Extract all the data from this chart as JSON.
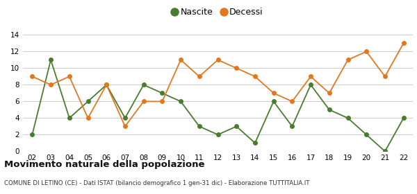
{
  "years": [
    "02",
    "03",
    "04",
    "05",
    "06",
    "07",
    "08",
    "09",
    "10",
    "11",
    "12",
    "13",
    "14",
    "15",
    "16",
    "17",
    "18",
    "19",
    "20",
    "21",
    "22"
  ],
  "nascite": [
    2,
    11,
    4,
    6,
    8,
    4,
    8,
    7,
    6,
    3,
    2,
    3,
    1,
    6,
    3,
    8,
    5,
    4,
    2,
    0,
    4
  ],
  "decessi": [
    9,
    8,
    9,
    4,
    8,
    3,
    6,
    6,
    11,
    9,
    11,
    10,
    9,
    7,
    6,
    9,
    7,
    11,
    12,
    9,
    13
  ],
  "nascite_color": "#4a7c2f",
  "decessi_color": "#e07820",
  "ylim": [
    0,
    14
  ],
  "yticks": [
    0,
    2,
    4,
    6,
    8,
    10,
    12,
    14
  ],
  "title": "Movimento naturale della popolazione",
  "subtitle": "COMUNE DI LETINO (CE) - Dati ISTAT (bilancio demografico 1 gen-31 dic) - Elaborazione TUTTITALIA.IT",
  "legend_nascite": "Nascite",
  "legend_decessi": "Decessi",
  "background_color": "#ffffff",
  "grid_color": "#cccccc"
}
